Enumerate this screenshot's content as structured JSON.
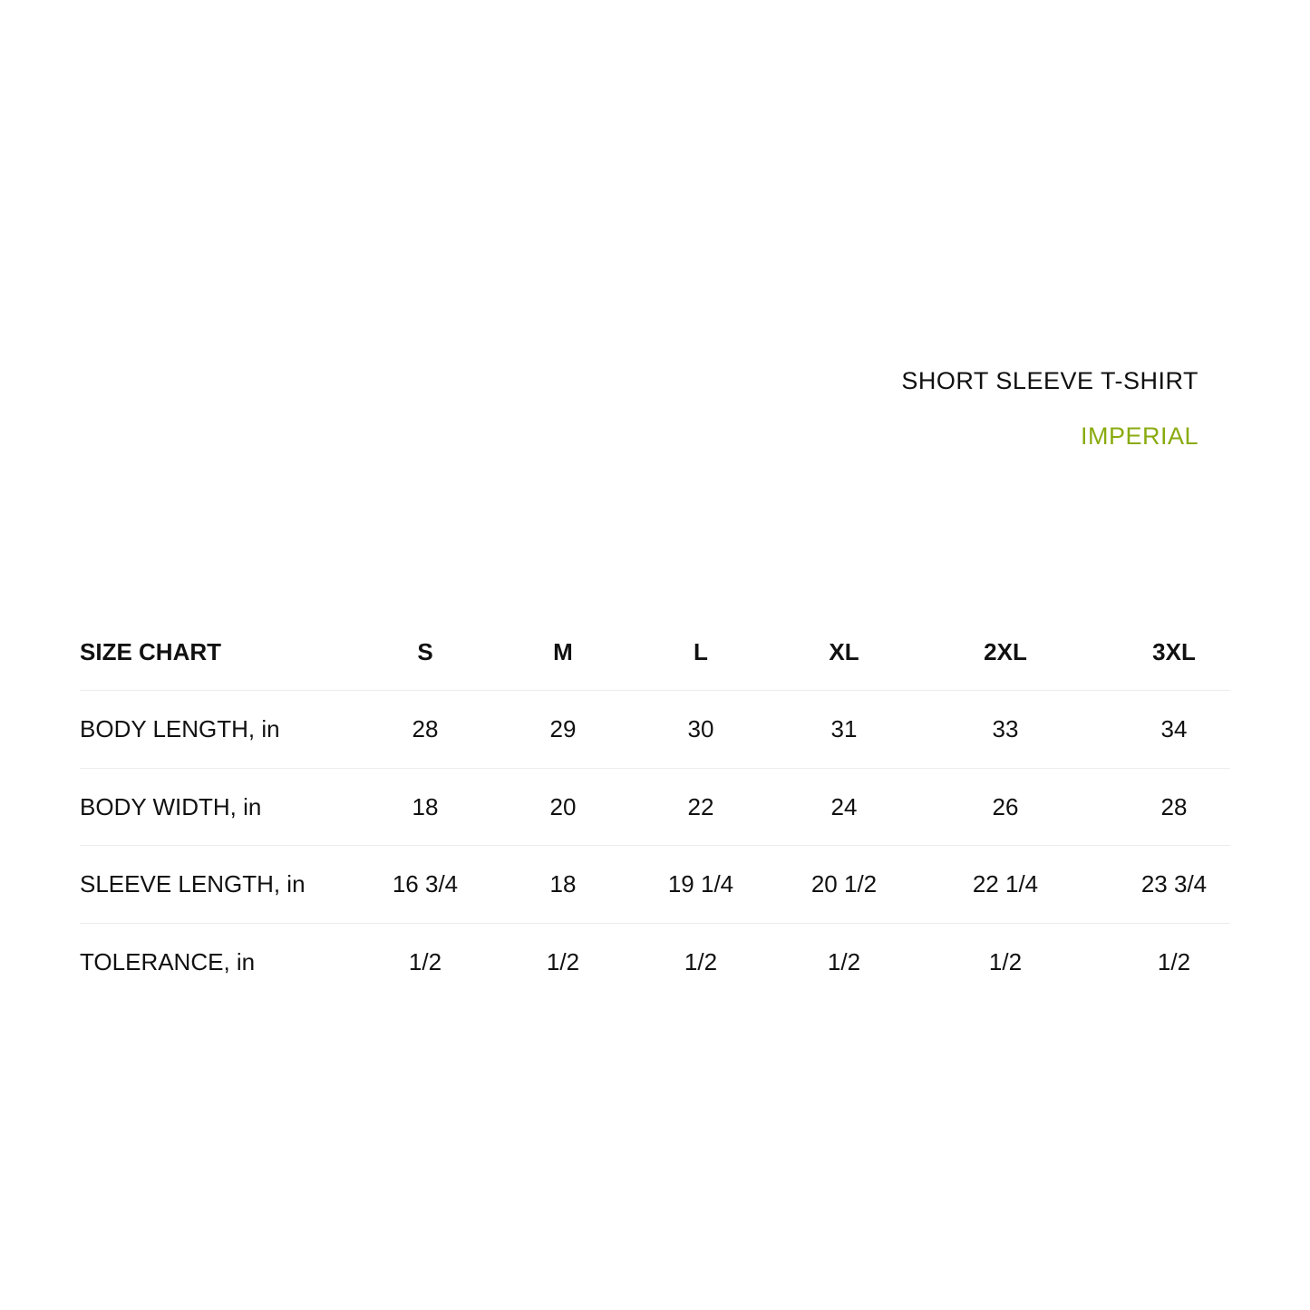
{
  "title": "SHORT SLEEVE T-SHIRT",
  "subtitle": "IMPERIAL",
  "colors": {
    "text": "#111111",
    "accent": "#8aab0f",
    "divider": "#ececec"
  },
  "table": {
    "header": [
      "SIZE CHART",
      "S",
      "M",
      "L",
      "XL",
      "2XL",
      "3XL"
    ],
    "rows": [
      [
        "BODY LENGTH, in",
        "28",
        "29",
        "30",
        "31",
        "33",
        "34"
      ],
      [
        "BODY WIDTH, in",
        "18",
        "20",
        "22",
        "24",
        "26",
        "28"
      ],
      [
        "SLEEVE LENGTH, in",
        "16 3/4",
        "18",
        "19 1/4",
        "20 1/2",
        "22 1/4",
        "23 3/4"
      ],
      [
        "TOLERANCE, in",
        "1/2",
        "1/2",
        "1/2",
        "1/2",
        "1/2",
        "1/2"
      ]
    ]
  }
}
